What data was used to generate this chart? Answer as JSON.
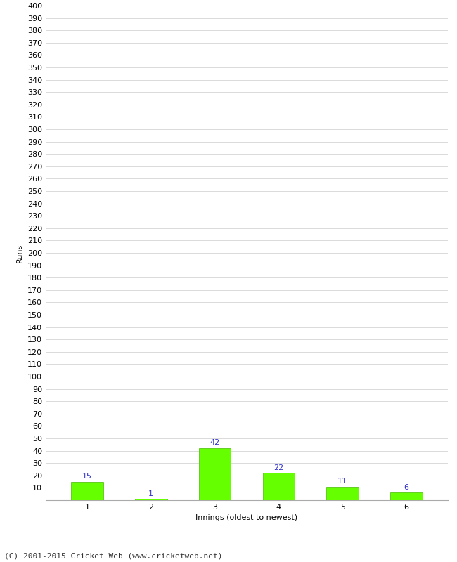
{
  "categories": [
    "1",
    "2",
    "3",
    "4",
    "5",
    "6"
  ],
  "values": [
    15,
    1,
    42,
    22,
    11,
    6
  ],
  "bar_color": "#66ff00",
  "bar_edge_color": "#44bb00",
  "label_color": "#3333cc",
  "xlabel": "Innings (oldest to newest)",
  "ylabel": "Runs",
  "ylim": [
    0,
    400
  ],
  "ytick_step": 10,
  "background_color": "#ffffff",
  "grid_color": "#cccccc",
  "footer_text": "(C) 2001-2015 Cricket Web (www.cricketweb.net)",
  "label_fontsize": 8,
  "axis_fontsize": 8,
  "footer_fontsize": 8,
  "ylabel_fontsize": 8
}
